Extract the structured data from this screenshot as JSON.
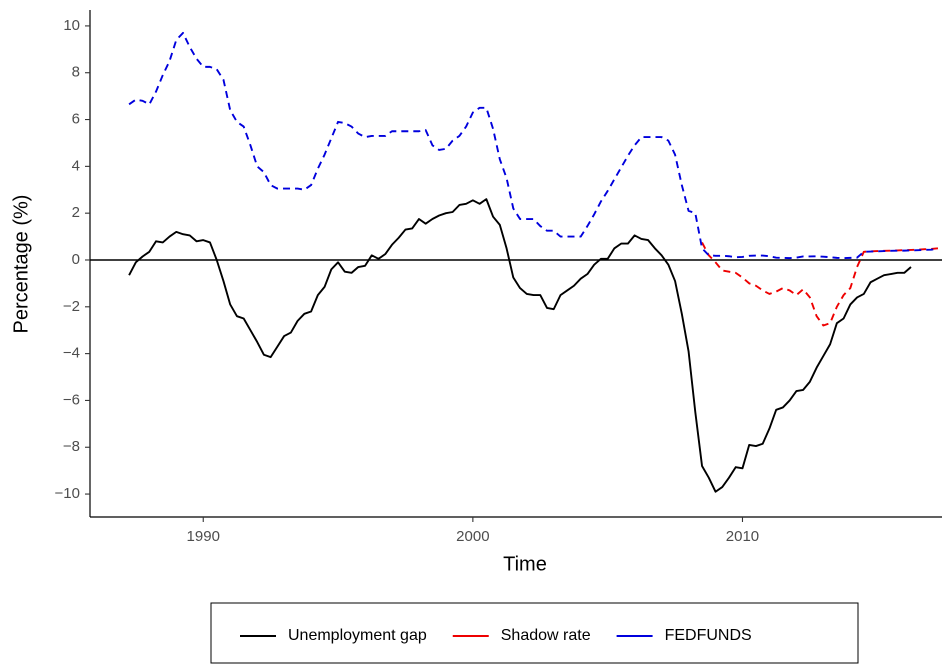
{
  "chart_data": {
    "type": "line",
    "xlabel": "Time",
    "ylabel": "Percentage (%)",
    "x": [
      1987.25,
      1987.5,
      1987.75,
      1988,
      1988.25,
      1988.5,
      1988.75,
      1989,
      1989.25,
      1989.5,
      1989.75,
      1990,
      1990.25,
      1990.5,
      1990.75,
      1991,
      1991.25,
      1991.5,
      1991.75,
      1992,
      1992.25,
      1992.5,
      1992.75,
      1993,
      1993.25,
      1993.5,
      1993.75,
      1994,
      1994.25,
      1994.5,
      1994.75,
      1995,
      1995.25,
      1995.5,
      1995.75,
      1996,
      1996.25,
      1996.5,
      1996.75,
      1997,
      1997.25,
      1997.5,
      1997.75,
      1998,
      1998.25,
      1998.5,
      1998.75,
      1999,
      1999.25,
      1999.5,
      1999.75,
      2000,
      2000.25,
      2000.5,
      2000.75,
      2001,
      2001.25,
      2001.5,
      2001.75,
      2002,
      2002.25,
      2002.5,
      2002.75,
      2003,
      2003.25,
      2003.5,
      2003.75,
      2004,
      2004.25,
      2004.5,
      2004.75,
      2005,
      2005.25,
      2005.5,
      2005.75,
      2006,
      2006.25,
      2006.5,
      2006.75,
      2007,
      2007.25,
      2007.5,
      2007.75,
      2008,
      2008.25,
      2008.5,
      2008.75,
      2009,
      2009.25,
      2009.5,
      2009.75,
      2010,
      2010.25,
      2010.5,
      2010.75,
      2011,
      2011.25,
      2011.5,
      2011.75,
      2012,
      2012.25,
      2012.5,
      2012.75,
      2013,
      2013.25,
      2013.5,
      2013.75,
      2014,
      2014.25,
      2014.5,
      2014.75,
      2015,
      2015.25,
      2015.5,
      2015.75,
      2016,
      2016.25,
      2016.5,
      2016.75,
      2017,
      2017.25
    ],
    "series": [
      {
        "name": "Unemployment gap",
        "color": "#000000",
        "dashed": false,
        "values": [
          -0.65,
          -0.1,
          0.15,
          0.35,
          0.8,
          0.75,
          1.0,
          1.2,
          1.1,
          1.05,
          0.8,
          0.85,
          0.75,
          0.0,
          -0.9,
          -1.9,
          -2.4,
          -2.5,
          -3.0,
          -3.5,
          -4.05,
          -4.15,
          -3.7,
          -3.25,
          -3.1,
          -2.6,
          -2.3,
          -2.2,
          -1.5,
          -1.15,
          -0.4,
          -0.1,
          -0.5,
          -0.55,
          -0.3,
          -0.25,
          0.2,
          0.05,
          0.25,
          0.65,
          0.95,
          1.3,
          1.35,
          1.75,
          1.55,
          1.75,
          1.9,
          2.0,
          2.05,
          2.35,
          2.4,
          2.55,
          2.4,
          2.6,
          1.85,
          1.5,
          0.5,
          -0.75,
          -1.2,
          -1.45,
          -1.5,
          -1.5,
          -2.05,
          -2.1,
          -1.5,
          -1.3,
          -1.1,
          -0.8,
          -0.6,
          -0.2,
          0.05,
          0.05,
          0.5,
          0.7,
          0.7,
          1.05,
          0.9,
          0.85,
          0.5,
          0.2,
          -0.2,
          -0.9,
          -2.3,
          -3.9,
          -6.5,
          -8.8,
          -9.3,
          -9.9,
          -9.7,
          -9.3,
          -8.85,
          -8.9,
          -7.9,
          -7.95,
          -7.85,
          -7.2,
          -6.4,
          -6.3,
          -6.0,
          -5.6,
          -5.55,
          -5.2,
          -4.6,
          -4.1,
          -3.6,
          -2.7,
          -2.5,
          -1.9,
          -1.6,
          -1.45,
          -0.95,
          -0.8,
          -0.65,
          -0.6,
          -0.55,
          -0.55,
          -0.3,
          null,
          null,
          null,
          null
        ]
      },
      {
        "name": "Shadow rate",
        "color": "#ee0000",
        "dashed": true,
        "values": [
          null,
          null,
          null,
          null,
          null,
          null,
          null,
          null,
          null,
          null,
          null,
          null,
          null,
          null,
          null,
          null,
          null,
          null,
          null,
          null,
          null,
          null,
          null,
          null,
          null,
          null,
          null,
          null,
          null,
          null,
          null,
          null,
          null,
          null,
          null,
          null,
          null,
          null,
          null,
          null,
          null,
          null,
          null,
          null,
          null,
          null,
          null,
          null,
          null,
          null,
          null,
          null,
          null,
          null,
          null,
          null,
          null,
          null,
          null,
          null,
          null,
          null,
          null,
          null,
          null,
          null,
          null,
          null,
          null,
          null,
          null,
          null,
          null,
          null,
          null,
          null,
          null,
          null,
          null,
          null,
          null,
          null,
          null,
          null,
          null,
          0.75,
          0.2,
          -0.1,
          -0.45,
          -0.5,
          -0.55,
          -0.75,
          -1.0,
          -1.1,
          -1.3,
          -1.45,
          -1.35,
          -1.2,
          -1.3,
          -1.5,
          -1.25,
          -1.6,
          -2.4,
          -2.8,
          -2.7,
          -2.0,
          -1.5,
          -1.2,
          -0.3,
          0.35,
          0.37,
          0.38,
          0.39,
          0.4,
          0.41,
          0.42,
          0.43,
          0.44,
          0.46,
          0.47,
          0.5
        ]
      },
      {
        "name": "FEDFUNDS",
        "color": "#0000dd",
        "dashed": true,
        "values": [
          6.65,
          6.85,
          6.8,
          6.65,
          7.2,
          7.9,
          8.5,
          9.4,
          9.7,
          9.1,
          8.6,
          8.25,
          8.25,
          8.15,
          7.7,
          6.4,
          5.9,
          5.7,
          4.9,
          4.0,
          3.75,
          3.2,
          3.05,
          3.05,
          3.05,
          3.05,
          3.0,
          3.2,
          3.9,
          4.5,
          5.2,
          5.9,
          5.85,
          5.7,
          5.4,
          5.25,
          5.3,
          5.3,
          5.3,
          5.5,
          5.5,
          5.5,
          5.5,
          5.5,
          5.55,
          4.9,
          4.7,
          4.75,
          5.1,
          5.3,
          5.7,
          6.3,
          6.5,
          6.5,
          5.6,
          4.3,
          3.5,
          2.2,
          1.75,
          1.75,
          1.75,
          1.45,
          1.25,
          1.25,
          1.0,
          1.0,
          1.0,
          1.0,
          1.45,
          1.95,
          2.5,
          2.95,
          3.45,
          3.95,
          4.45,
          4.9,
          5.25,
          5.25,
          5.25,
          5.25,
          5.1,
          4.5,
          3.2,
          2.1,
          2.0,
          0.5,
          0.2,
          0.18,
          0.18,
          0.16,
          0.12,
          0.13,
          0.18,
          0.19,
          0.19,
          0.16,
          0.1,
          0.09,
          0.08,
          0.1,
          0.15,
          0.15,
          0.16,
          0.14,
          0.12,
          0.09,
          0.08,
          0.09,
          0.1,
          0.35,
          0.36,
          0.37,
          0.38,
          0.39,
          0.4,
          0.4,
          0.41,
          0.42,
          0.43,
          0.44,
          0.48
        ]
      }
    ],
    "xlim": [
      1985.8,
      2017.4
    ],
    "xticks": [
      1990,
      2000,
      2010
    ],
    "ylim": [
      -10.98,
      10.68
    ],
    "yticks": [
      {
        "value": -10,
        "label": "−10"
      },
      {
        "value": -8,
        "label": "−8"
      },
      {
        "value": -6,
        "label": "−6"
      },
      {
        "value": -4,
        "label": "−4"
      },
      {
        "value": -2,
        "label": "−2"
      },
      0,
      2,
      4,
      6,
      8,
      10
    ],
    "hline": 0,
    "grid": false,
    "legend": "bottom"
  }
}
